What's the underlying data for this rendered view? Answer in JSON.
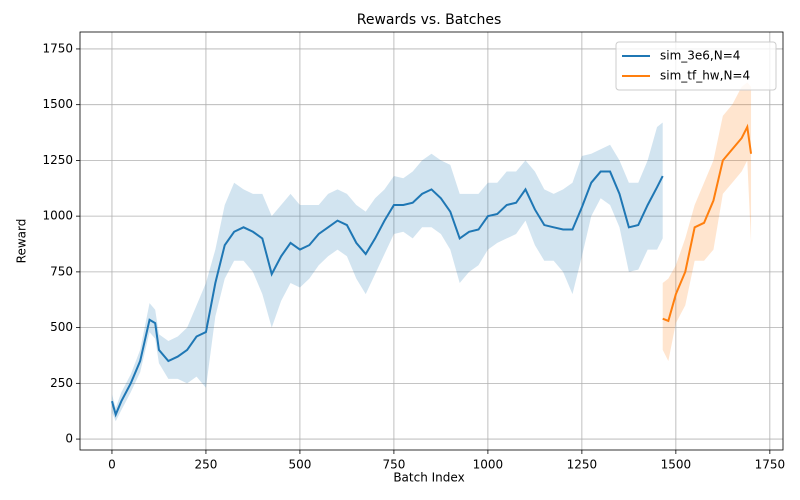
{
  "chart_data": {
    "type": "line",
    "title": "Rewards vs. Batches",
    "x_label": "Batch Index",
    "y_label": "Reward",
    "xlim": [
      -85,
      1785
    ],
    "ylim": [
      -49,
      1826
    ],
    "xticks": [
      0,
      250,
      500,
      750,
      1000,
      1250,
      1500,
      1750
    ],
    "yticks": [
      0,
      250,
      500,
      750,
      1000,
      1250,
      1500,
      1750
    ],
    "grid": true,
    "legend": "upper right",
    "band_opacity": 0.2,
    "series": [
      {
        "name": "sim_3e6,N=4",
        "color": "#1f77b4",
        "x": [
          0,
          10,
          25,
          50,
          75,
          100,
          115,
          125,
          150,
          175,
          200,
          225,
          250,
          275,
          300,
          325,
          350,
          375,
          400,
          425,
          450,
          475,
          500,
          525,
          550,
          575,
          600,
          625,
          650,
          675,
          700,
          725,
          750,
          775,
          800,
          825,
          850,
          875,
          900,
          925,
          950,
          975,
          1000,
          1025,
          1050,
          1075,
          1100,
          1125,
          1150,
          1175,
          1200,
          1225,
          1250,
          1275,
          1300,
          1325,
          1350,
          1375,
          1400,
          1425,
          1450,
          1465
        ],
        "values": [
          170,
          110,
          170,
          250,
          350,
          535,
          520,
          400,
          350,
          370,
          400,
          460,
          480,
          700,
          870,
          930,
          950,
          930,
          900,
          740,
          820,
          880,
          850,
          870,
          920,
          950,
          980,
          960,
          880,
          830,
          900,
          980,
          1050,
          1050,
          1060,
          1100,
          1120,
          1080,
          1020,
          900,
          930,
          940,
          1000,
          1010,
          1050,
          1060,
          1120,
          1030,
          960,
          950,
          940,
          940,
          1040,
          1150,
          1200,
          1200,
          1100,
          950,
          960,
          1050,
          1130,
          1180
        ],
        "lower": [
          120,
          80,
          130,
          210,
          300,
          480,
          450,
          340,
          270,
          270,
          250,
          280,
          230,
          550,
          720,
          800,
          800,
          750,
          650,
          500,
          620,
          700,
          680,
          720,
          780,
          820,
          850,
          820,
          720,
          650,
          740,
          830,
          920,
          930,
          900,
          950,
          950,
          920,
          850,
          700,
          750,
          780,
          850,
          880,
          900,
          920,
          980,
          870,
          800,
          800,
          750,
          650,
          820,
          1000,
          1080,
          1050,
          950,
          750,
          760,
          850,
          850,
          900
        ],
        "upper": [
          200,
          140,
          210,
          290,
          400,
          610,
          580,
          470,
          440,
          460,
          500,
          600,
          700,
          850,
          1050,
          1150,
          1120,
          1100,
          1100,
          1000,
          1050,
          1100,
          1050,
          1050,
          1050,
          1100,
          1120,
          1100,
          1050,
          1020,
          1080,
          1120,
          1180,
          1170,
          1200,
          1250,
          1280,
          1250,
          1230,
          1100,
          1100,
          1100,
          1150,
          1150,
          1200,
          1200,
          1250,
          1200,
          1120,
          1100,
          1120,
          1150,
          1270,
          1280,
          1300,
          1320,
          1250,
          1150,
          1150,
          1250,
          1400,
          1420
        ]
      },
      {
        "name": "sim_tf_hw,N=4",
        "color": "#ff7f0e",
        "x": [
          1465,
          1480,
          1500,
          1525,
          1550,
          1575,
          1600,
          1625,
          1650,
          1675,
          1690,
          1700
        ],
        "values": [
          540,
          530,
          650,
          750,
          950,
          970,
          1070,
          1250,
          1300,
          1350,
          1400,
          1280
        ],
        "lower": [
          400,
          350,
          520,
          600,
          800,
          800,
          850,
          1100,
          1150,
          1200,
          1250,
          880
        ],
        "upper": [
          700,
          720,
          780,
          900,
          1050,
          1150,
          1250,
          1450,
          1500,
          1580,
          1600,
          1580
        ]
      }
    ]
  }
}
